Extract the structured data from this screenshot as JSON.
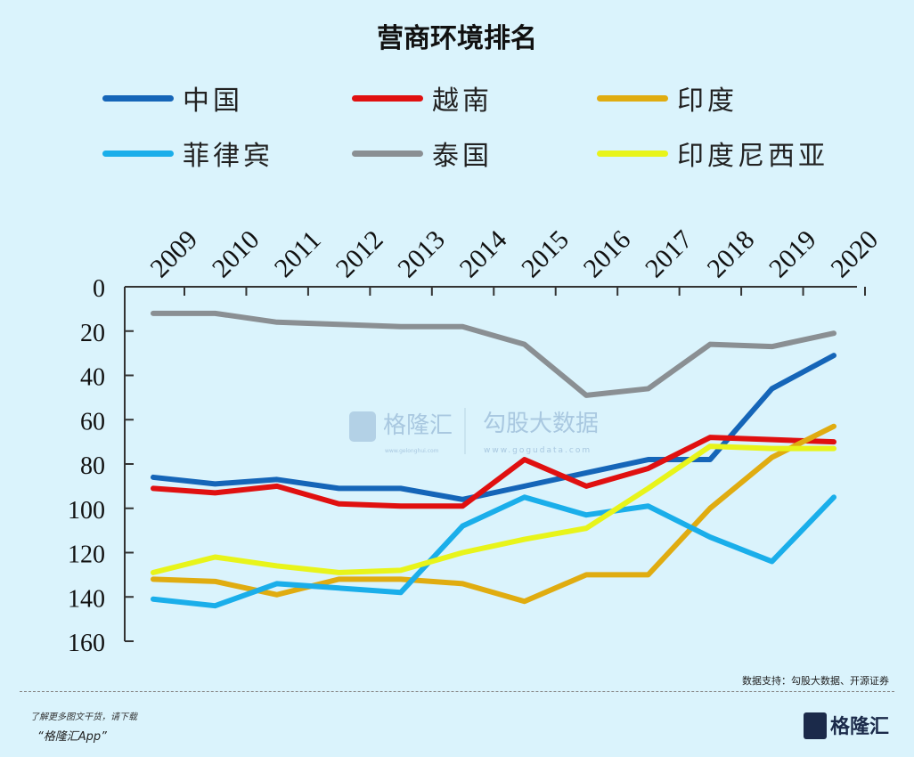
{
  "chart_data": {
    "type": "line",
    "title": "营商环境排名",
    "categories": [
      "2009",
      "2010",
      "2011",
      "2012",
      "2013",
      "2014",
      "2015",
      "2016",
      "2017",
      "2018",
      "2019",
      "2020"
    ],
    "y_axis": {
      "range": [
        0,
        160
      ],
      "inverted": true,
      "ticks": [
        0,
        20,
        40,
        60,
        80,
        100,
        120,
        140,
        160
      ]
    },
    "x_axis_position": "top",
    "grid": false,
    "legend_placement": "top",
    "series": [
      {
        "name": "中国",
        "color": "#1565b8",
        "values": [
          86,
          89,
          87,
          91,
          91,
          96,
          90,
          84,
          78,
          78,
          46,
          31
        ]
      },
      {
        "name": "越南",
        "color": "#e01010",
        "values": [
          91,
          93,
          90,
          98,
          99,
          99,
          78,
          90,
          82,
          68,
          69,
          70
        ]
      },
      {
        "name": "印度",
        "color": "#e0ac10",
        "values": [
          132,
          133,
          139,
          132,
          132,
          134,
          142,
          130,
          130,
          100,
          77,
          63
        ]
      },
      {
        "name": "菲律宾",
        "color": "#1aaeea",
        "values": [
          141,
          144,
          134,
          136,
          138,
          108,
          95,
          103,
          99,
          113,
          124,
          95
        ]
      },
      {
        "name": "泰国",
        "color": "#8a8f93",
        "values": [
          12,
          12,
          16,
          17,
          18,
          18,
          26,
          49,
          46,
          26,
          27,
          21
        ]
      },
      {
        "name": "印度尼西亚",
        "color": "#e8f41a",
        "values": [
          129,
          122,
          126,
          129,
          128,
          120,
          114,
          109,
          91,
          72,
          73,
          73
        ]
      }
    ]
  },
  "watermark": {
    "brand": "格隆汇",
    "brand_url": "www.gelonghui.com",
    "partner": "勾股大数据",
    "partner_url": "www.gogudata.com"
  },
  "footer": {
    "source": "数据支持：勾股大数据、开源证券",
    "promo_line1": "了解更多图文干货，请下载",
    "promo_line2": "“格隆汇App”",
    "logo": "格隆汇"
  }
}
